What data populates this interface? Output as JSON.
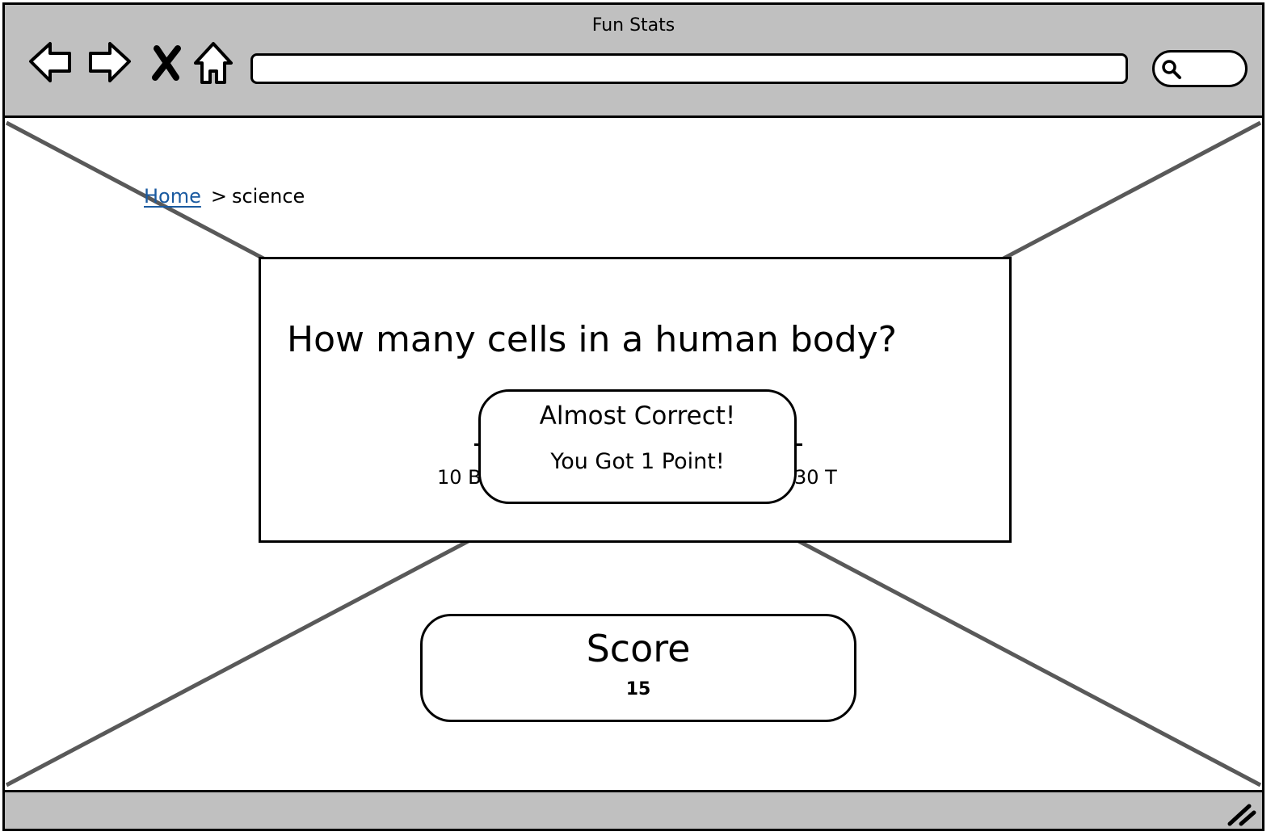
{
  "window": {
    "title": "Fun Stats"
  },
  "toolbar": {
    "icons": [
      "back-arrow-icon",
      "forward-arrow-icon",
      "close-icon",
      "home-icon",
      "search-icon",
      "resize-grip-icon"
    ],
    "address_value": "",
    "search_value": ""
  },
  "breadcrumb": {
    "home_link": "Home",
    "separator": ">",
    "current": "science"
  },
  "question": {
    "text": "How many cells in a human body?",
    "slider_min_label": "10 B",
    "slider_max_label": "30 T"
  },
  "feedback": {
    "title": "Almost Correct!",
    "detail": "You Got 1 Point!"
  },
  "score": {
    "label": "Score",
    "value": "15"
  },
  "colors": {
    "chrome": "#c0c0c0",
    "link": "#1a5aa0",
    "placeholder_lines": "#595959"
  }
}
